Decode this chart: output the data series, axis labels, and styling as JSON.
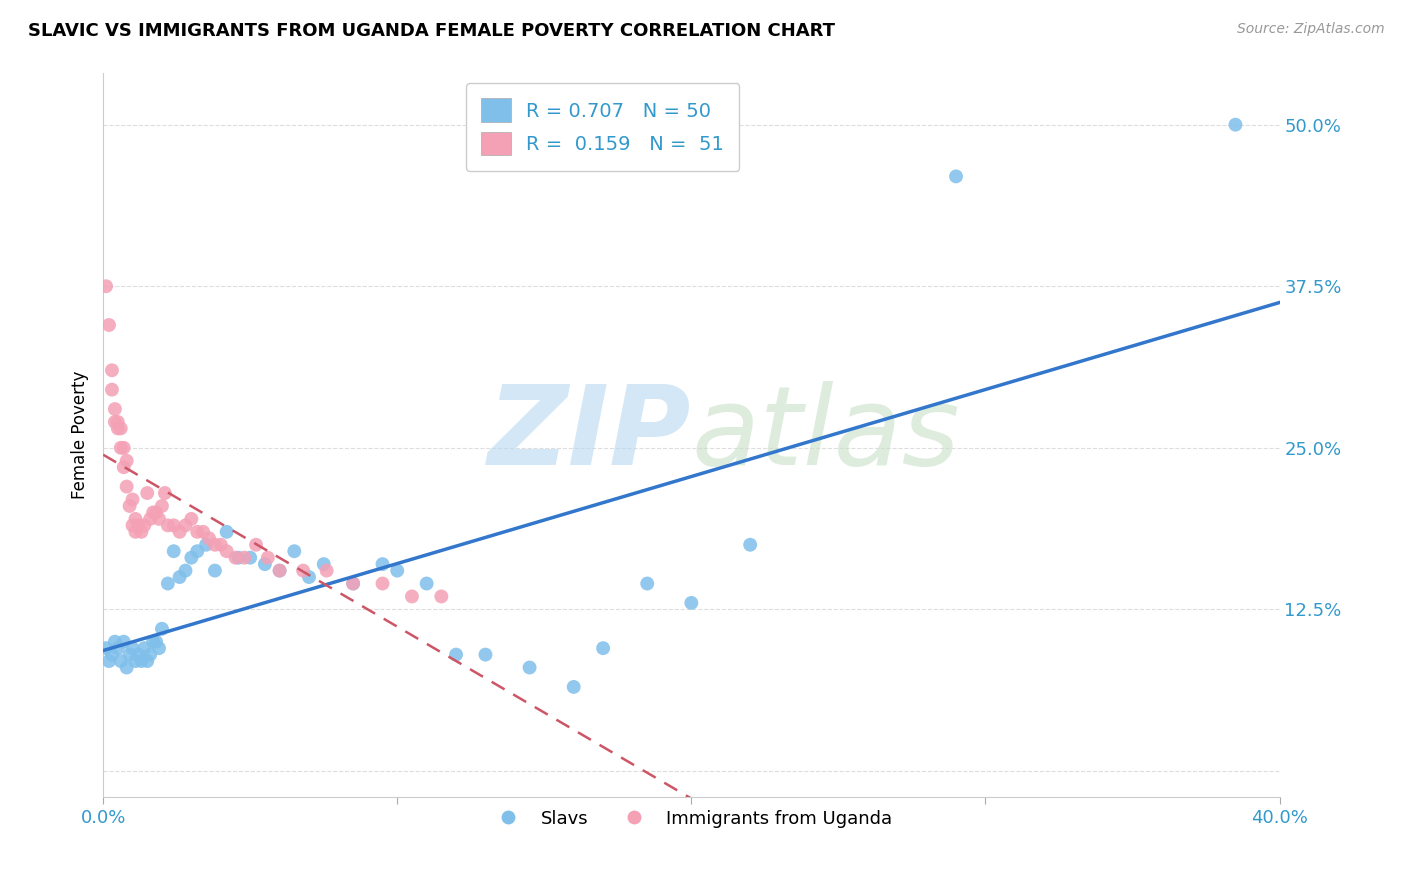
{
  "title": "SLAVIC VS IMMIGRANTS FROM UGANDA FEMALE POVERTY CORRELATION CHART",
  "source": "Source: ZipAtlas.com",
  "ylabel": "Female Poverty",
  "ylabel_ticks": [
    "",
    "12.5%",
    "25.0%",
    "37.5%",
    "50.0%"
  ],
  "ylabel_tick_vals": [
    0,
    0.125,
    0.25,
    0.375,
    0.5
  ],
  "xlim": [
    0,
    0.4
  ],
  "ylim": [
    -0.02,
    0.54
  ],
  "scatter_blue_color": "#7fbfea",
  "scatter_pink_color": "#f4a0b5",
  "line_blue_color": "#3377cc",
  "line_pink_color": "#cc5566",
  "background_color": "#ffffff",
  "grid_color": "#dddddd",
  "axis_label_color": "#3399cc",
  "legend_blue_label": "R = 0.707   N = 50",
  "legend_pink_label": "R =  0.159   N =  51",
  "slavs_label": "Slavs",
  "uganda_label": "Immigrants from Uganda",
  "slavs_x": [
    0.001,
    0.002,
    0.003,
    0.004,
    0.005,
    0.006,
    0.007,
    0.008,
    0.009,
    0.01,
    0.011,
    0.012,
    0.013,
    0.014,
    0.015,
    0.016,
    0.017,
    0.018,
    0.019,
    0.02,
    0.022,
    0.024,
    0.026,
    0.028,
    0.03,
    0.032,
    0.035,
    0.038,
    0.042,
    0.046,
    0.05,
    0.055,
    0.06,
    0.065,
    0.07,
    0.075,
    0.085,
    0.095,
    0.1,
    0.11,
    0.12,
    0.13,
    0.145,
    0.16,
    0.17,
    0.185,
    0.2,
    0.22,
    0.29,
    0.385
  ],
  "slavs_y": [
    0.095,
    0.085,
    0.09,
    0.1,
    0.095,
    0.085,
    0.1,
    0.08,
    0.09,
    0.095,
    0.085,
    0.09,
    0.085,
    0.095,
    0.085,
    0.09,
    0.1,
    0.1,
    0.095,
    0.11,
    0.145,
    0.17,
    0.15,
    0.155,
    0.165,
    0.17,
    0.175,
    0.155,
    0.185,
    0.165,
    0.165,
    0.16,
    0.155,
    0.17,
    0.15,
    0.16,
    0.145,
    0.16,
    0.155,
    0.145,
    0.09,
    0.09,
    0.08,
    0.065,
    0.095,
    0.145,
    0.13,
    0.175,
    0.46,
    0.5
  ],
  "uganda_x": [
    0.001,
    0.002,
    0.003,
    0.003,
    0.004,
    0.004,
    0.005,
    0.005,
    0.006,
    0.006,
    0.007,
    0.007,
    0.008,
    0.008,
    0.009,
    0.01,
    0.01,
    0.011,
    0.011,
    0.012,
    0.013,
    0.014,
    0.015,
    0.016,
    0.017,
    0.018,
    0.019,
    0.02,
    0.021,
    0.022,
    0.024,
    0.026,
    0.028,
    0.03,
    0.032,
    0.034,
    0.036,
    0.038,
    0.04,
    0.042,
    0.045,
    0.048,
    0.052,
    0.056,
    0.06,
    0.068,
    0.076,
    0.085,
    0.095,
    0.105,
    0.115
  ],
  "uganda_y": [
    0.375,
    0.345,
    0.295,
    0.31,
    0.27,
    0.28,
    0.27,
    0.265,
    0.25,
    0.265,
    0.235,
    0.25,
    0.24,
    0.22,
    0.205,
    0.19,
    0.21,
    0.185,
    0.195,
    0.19,
    0.185,
    0.19,
    0.215,
    0.195,
    0.2,
    0.2,
    0.195,
    0.205,
    0.215,
    0.19,
    0.19,
    0.185,
    0.19,
    0.195,
    0.185,
    0.185,
    0.18,
    0.175,
    0.175,
    0.17,
    0.165,
    0.165,
    0.175,
    0.165,
    0.155,
    0.155,
    0.155,
    0.145,
    0.145,
    0.135,
    0.135
  ]
}
